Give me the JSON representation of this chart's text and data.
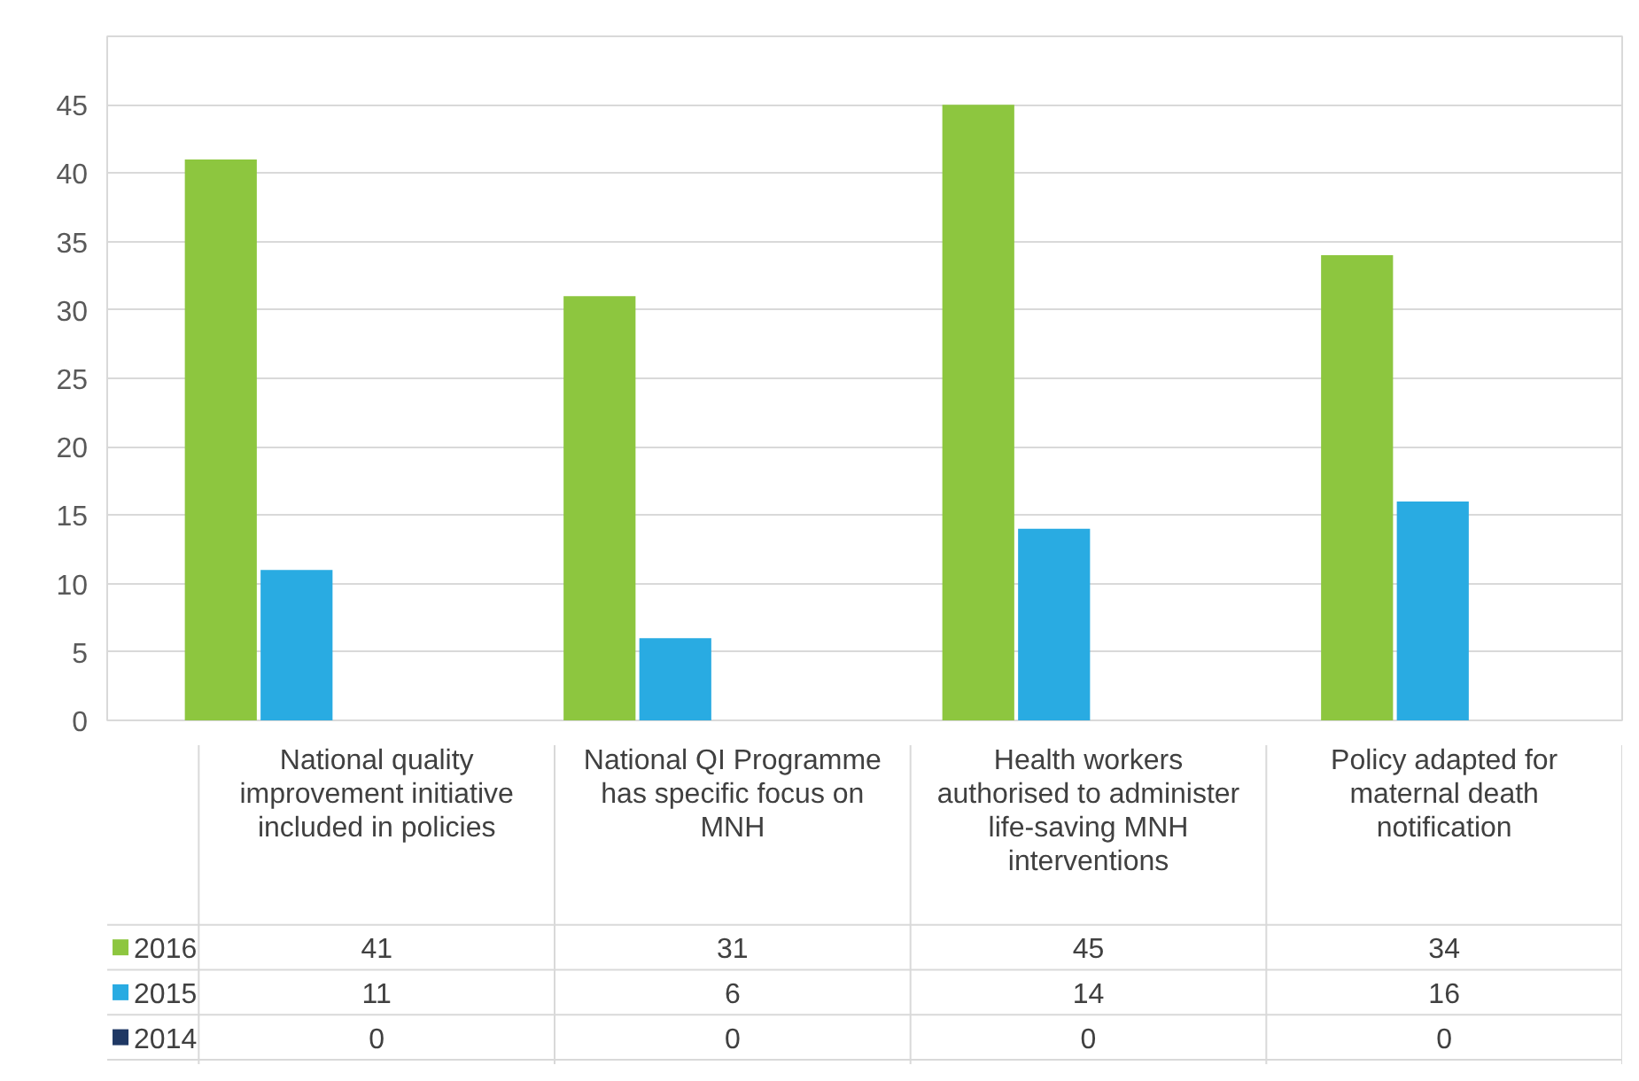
{
  "chart_data": {
    "type": "bar",
    "categories": [
      "National quality improvement initiative included in policies",
      "National QI Programme has specific focus on MNH",
      "Health workers authorised to administer life-saving MNH interventions",
      "Policy adapted for maternal death notification"
    ],
    "series": [
      {
        "name": "2016",
        "color": "#8dc63f",
        "values": [
          41,
          31,
          45,
          34
        ]
      },
      {
        "name": "2015",
        "color": "#29abe2",
        "values": [
          11,
          6,
          14,
          16
        ]
      },
      {
        "name": "2014",
        "color": "#1f3864",
        "values": [
          0,
          0,
          0,
          0
        ]
      }
    ],
    "ylim": [
      0,
      50
    ],
    "yticks": [
      0,
      5,
      10,
      15,
      20,
      25,
      30,
      35,
      40,
      45,
      {
        "value": 50,
        "label": null
      }
    ],
    "grid": "y",
    "legend": "bottom",
    "data_labels": true
  }
}
